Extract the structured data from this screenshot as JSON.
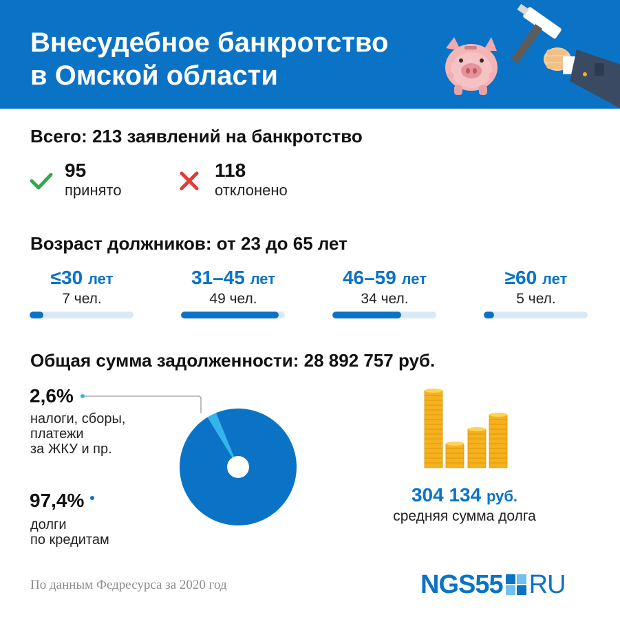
{
  "header": {
    "title_line1": "Внесудебное банкротство",
    "title_line2": "в Омской области",
    "background": "#0b73c6"
  },
  "applications": {
    "heading": "Всего: 213 заявлений на банкротство",
    "accepted": {
      "value": "95",
      "label": "принято",
      "icon": "check-icon",
      "color": "#2fa84f"
    },
    "rejected": {
      "value": "118",
      "label": "отклонено",
      "icon": "cross-icon",
      "color": "#e23b36"
    }
  },
  "ages": {
    "heading": "Возраст должников: от 23 до 65 лет",
    "groups": [
      {
        "range": "≤30",
        "unit": "лет",
        "count": "7 чел.",
        "fill_fraction": 0.13
      },
      {
        "range": "31–45",
        "unit": "лет",
        "count": "49 чел.",
        "fill_fraction": 0.94
      },
      {
        "range": "46–59",
        "unit": "лет",
        "count": "34 чел.",
        "fill_fraction": 0.66
      },
      {
        "range": "≥60",
        "unit": "лет",
        "count": "5 чел.",
        "fill_fraction": 0.1
      }
    ]
  },
  "debt": {
    "heading": "Общая сумма задолженности: 28 892 757 руб.",
    "average_value": "304 134",
    "average_unit": "руб.",
    "average_label": "средняя сумма долга"
  },
  "chart_data": {
    "type": "pie",
    "title": "",
    "slices": [
      {
        "pct_label": "2,6%",
        "label_line1": "налоги, сборы,",
        "label_line2": "платежи",
        "label_line3": "за ЖКУ и пр.",
        "value": 2.6,
        "color": "#33b4ec"
      },
      {
        "pct_label": "97,4%",
        "label_line1": "долги",
        "label_line2": "по кредитам",
        "value": 97.4,
        "color": "#0b73c6"
      }
    ]
  },
  "footer": {
    "source": "По данным Федресурса за 2020 год",
    "logo_brand": "NGS55",
    "logo_tld": "RU"
  },
  "colors": {
    "accent": "#0b73c6",
    "accent_light": "#dbe8f5",
    "coin": "#f5b21e"
  }
}
